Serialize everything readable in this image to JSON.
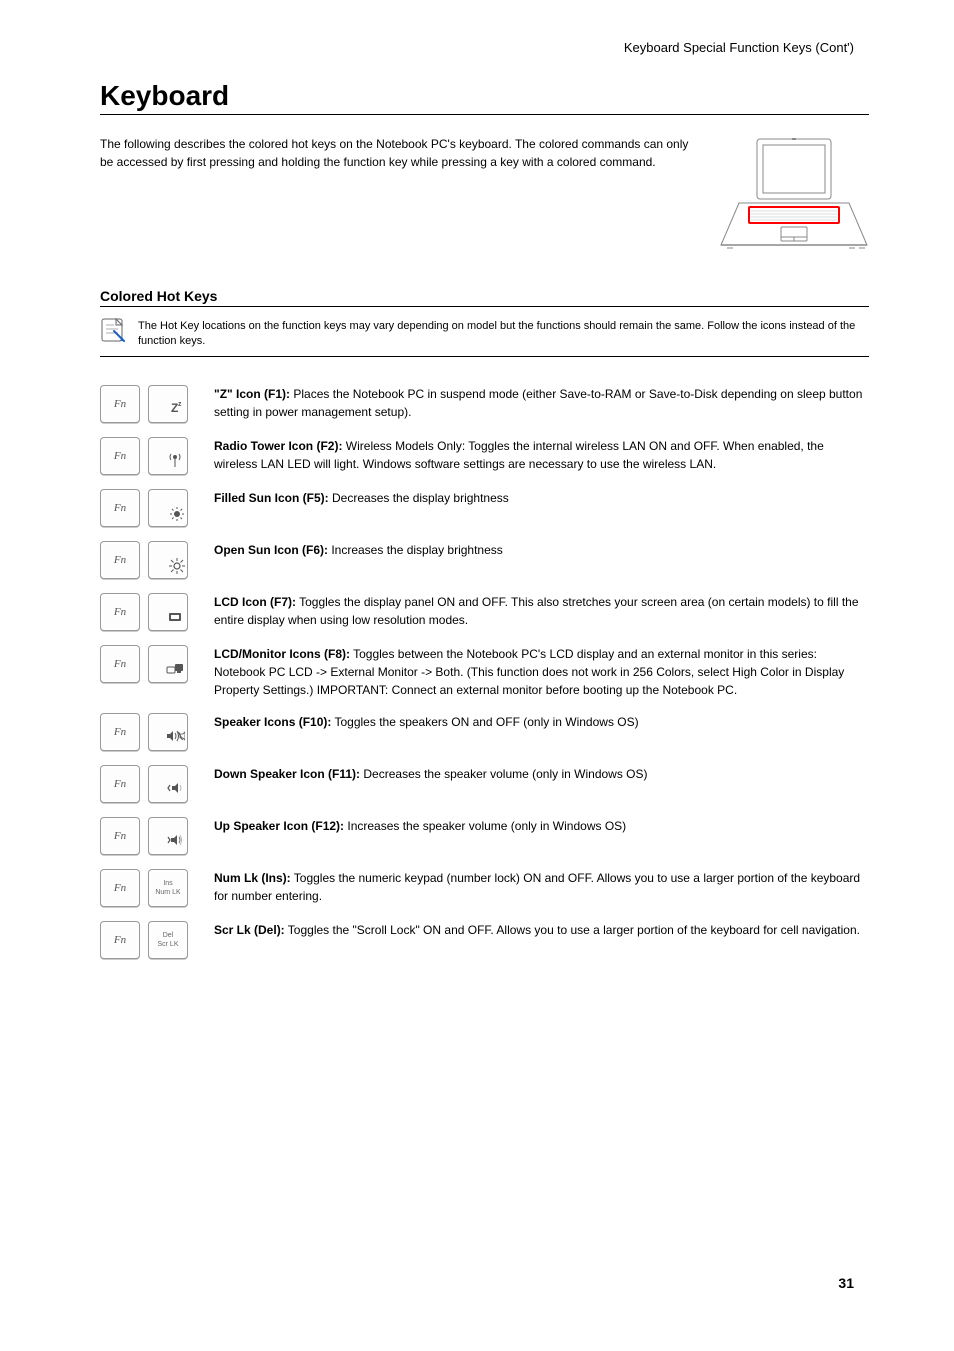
{
  "page": {
    "topRight": "Keyboard Special Function Keys (Cont')",
    "number": "31"
  },
  "section": {
    "title": "Keyboard",
    "intro": "The following describes the colored hot keys on the Notebook PC's keyboard. The colored commands can only be accessed by first pressing and holding the function key while pressing a key with a colored command."
  },
  "subheader": "Colored Hot Keys",
  "note": "The Hot Key locations on the function keys may vary depending on model but the functions should remain the same. Follow the icons instead of the function keys.",
  "keys": {
    "fn": "Fn"
  },
  "hotkeys": [
    {
      "icon": "sleep",
      "label": "\"Z\" Icon (F1):",
      "text": " Places the Notebook PC in suspend mode (either Save-to-RAM or Save-to-Disk depending on sleep button setting in power management setup)."
    },
    {
      "icon": "radio",
      "label": "Radio Tower Icon (F2):",
      "text": " Wireless Models Only: Toggles the internal wireless LAN ON and OFF. When enabled, the wireless LAN LED will light. Windows software settings are necessary to use the wireless LAN."
    },
    {
      "icon": "sundown",
      "label": "Filled Sun Icon (F5):",
      "text": " Decreases the display brightness"
    },
    {
      "icon": "sunup",
      "label": "Open Sun Icon (F6):",
      "text": " Increases the display brightness"
    },
    {
      "icon": "lcd",
      "label": "LCD Icon (F7):",
      "text": " Toggles the display panel ON and OFF. This also stretches your screen area (on certain models) to fill the entire display when using low resolution modes."
    },
    {
      "icon": "lcdmon",
      "label": "LCD/Monitor Icons (F8):",
      "text": " Toggles between the Notebook PC's LCD display and an external monitor in this series: Notebook PC LCD -> External Monitor -> Both. (This function does not work in 256 Colors, select High Color in Display Property Settings.) IMPORTANT: Connect an external monitor before booting up the Notebook PC."
    },
    {
      "icon": "speaker",
      "label": "Speaker Icons (F10):",
      "text": " Toggles the speakers ON and OFF (only in Windows OS)"
    },
    {
      "icon": "voldown",
      "label": "Down Speaker Icon (F11):",
      "text": " Decreases the speaker volume (only in Windows OS)"
    },
    {
      "icon": "volup",
      "label": "Up Speaker Icon (F12):",
      "text": " Increases the speaker volume (only in Windows OS)"
    },
    {
      "icon": "numlk",
      "topLabel": "Ins",
      "botLabel": "Num LK",
      "label": "Num Lk (Ins):",
      "text": " Toggles the numeric keypad (number lock) ON and OFF. Allows you to use a larger portion of the keyboard for number entering."
    },
    {
      "icon": "scrlk",
      "topLabel": "Del",
      "botLabel": "Scr LK",
      "label": "Scr Lk (Del):",
      "text": " Toggles the \"Scroll Lock\" ON and OFF. Allows you to use a larger portion of the keyboard for cell navigation."
    }
  ],
  "style": {
    "accent": "#ff0000",
    "keyBorder": "#999999",
    "textColor": "#000000",
    "iconColor": "#555555",
    "noteIconBorder": "#666666"
  }
}
